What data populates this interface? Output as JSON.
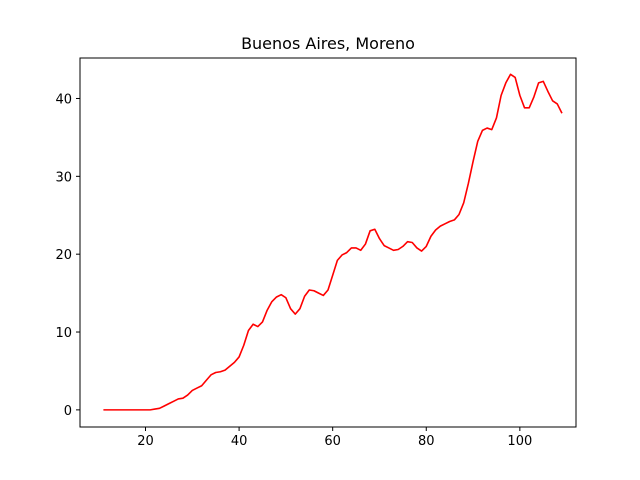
{
  "chart_data": {
    "type": "line",
    "title": "Buenos Aires, Moreno",
    "xlabel": "",
    "ylabel": "",
    "xlim": [
      6,
      112
    ],
    "ylim": [
      -2.2,
      45.2
    ],
    "x_ticks": [
      20,
      40,
      60,
      80,
      100
    ],
    "y_ticks": [
      0,
      10,
      20,
      30,
      40
    ],
    "grid": false,
    "series": [
      {
        "color": "#ff0000",
        "x": [
          11,
          12,
          13,
          14,
          15,
          16,
          17,
          18,
          19,
          20,
          21,
          22,
          23,
          24,
          25,
          26,
          27,
          28,
          29,
          30,
          31,
          32,
          33,
          34,
          35,
          36,
          37,
          38,
          39,
          40,
          41,
          42,
          43,
          44,
          45,
          46,
          47,
          48,
          49,
          50,
          51,
          52,
          53,
          54,
          55,
          56,
          57,
          58,
          59,
          60,
          61,
          62,
          63,
          64,
          65,
          66,
          67,
          68,
          69,
          70,
          71,
          72,
          73,
          74,
          75,
          76,
          77,
          78,
          79,
          80,
          81,
          82,
          83,
          84,
          85,
          86,
          87,
          88,
          89,
          90,
          91,
          92,
          93,
          94,
          95,
          96,
          97,
          98,
          99,
          100,
          101,
          102,
          103,
          104,
          105,
          106,
          107,
          108,
          109
        ],
        "y": [
          0,
          0,
          0,
          0,
          0,
          0,
          0,
          0,
          0,
          0,
          0,
          0.1,
          0.2,
          0.5,
          0.8,
          1.1,
          1.4,
          1.5,
          1.9,
          2.5,
          2.8,
          3.1,
          3.8,
          4.5,
          4.8,
          4.9,
          5.1,
          5.6,
          6.1,
          6.8,
          8.3,
          10.2,
          11.0,
          10.7,
          11.3,
          12.8,
          13.9,
          14.5,
          14.8,
          14.4,
          13.0,
          12.3,
          13.0,
          14.6,
          15.4,
          15.3,
          15.0,
          14.7,
          15.4,
          17.3,
          19.2,
          19.9,
          20.2,
          20.8,
          20.8,
          20.5,
          21.3,
          23.0,
          23.2,
          22.0,
          21.1,
          20.8,
          20.5,
          20.6,
          21.0,
          21.6,
          21.5,
          20.8,
          20.4,
          21.0,
          22.3,
          23.1,
          23.6,
          23.9,
          24.2,
          24.4,
          25.1,
          26.6,
          29.1,
          31.9,
          34.5,
          35.9,
          36.2,
          36.0,
          37.5,
          40.4,
          42.0,
          43.1,
          42.7,
          40.4,
          38.8,
          38.8,
          40.2,
          42.0,
          42.2,
          40.9,
          39.7,
          39.3,
          38.1
        ]
      }
    ]
  }
}
